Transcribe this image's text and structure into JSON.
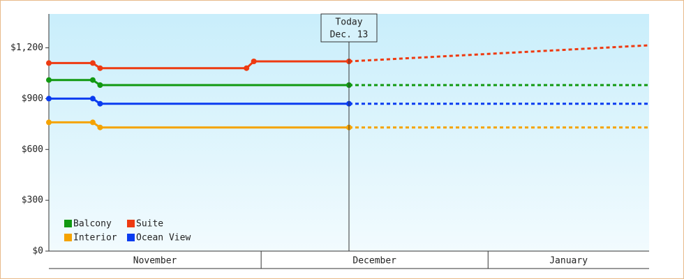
{
  "chart_data": {
    "type": "line",
    "xlim": [
      "Nov 2",
      "Jan 23"
    ],
    "ylim": [
      0,
      1400
    ],
    "yticks": [
      {
        "value": 0,
        "label": "$0"
      },
      {
        "value": 300,
        "label": "$300"
      },
      {
        "value": 600,
        "label": "$600"
      },
      {
        "value": 900,
        "label": "$900"
      },
      {
        "value": 1200,
        "label": "$1,200"
      }
    ],
    "month_bands": [
      {
        "label": "November",
        "start": "Nov 2",
        "end": "Dec 1"
      },
      {
        "label": "December",
        "start": "Dec 1",
        "end": "Jan 1"
      },
      {
        "label": "January",
        "start": "Jan 1",
        "end": "Jan 23"
      }
    ],
    "annotation": {
      "x": "Dec 13",
      "lines": [
        "Today",
        "Dec. 13"
      ]
    },
    "legend": "bottom-left",
    "series": [
      {
        "name": "Balcony",
        "color": "#119911",
        "x": [
          "Nov 2",
          "Nov 8",
          "Nov 9",
          "Dec 13"
        ],
        "values": [
          1010,
          1010,
          980,
          980
        ],
        "forecast_x": [
          "Dec 13",
          "Jan 23"
        ],
        "forecast_values": [
          980,
          980
        ]
      },
      {
        "name": "Suite",
        "color": "#ee3a11",
        "x": [
          "Nov 2",
          "Nov 8",
          "Nov 9",
          "Nov 29",
          "Nov 30",
          "Dec 13"
        ],
        "values": [
          1110,
          1110,
          1080,
          1080,
          1120,
          1120
        ],
        "forecast_x": [
          "Dec 13",
          "Jan 23"
        ],
        "forecast_values": [
          1120,
          1215
        ]
      },
      {
        "name": "Interior",
        "color": "#f5a300",
        "x": [
          "Nov 2",
          "Nov 8",
          "Nov 9",
          "Dec 13"
        ],
        "values": [
          760,
          760,
          730,
          730
        ],
        "forecast_x": [
          "Dec 13",
          "Jan 23"
        ],
        "forecast_values": [
          730,
          730
        ]
      },
      {
        "name": "Ocean View",
        "color": "#0a3cf0",
        "x": [
          "Nov 2",
          "Nov 8",
          "Nov 9",
          "Dec 13"
        ],
        "values": [
          900,
          900,
          870,
          870
        ],
        "forecast_x": [
          "Dec 13",
          "Jan 23"
        ],
        "forecast_values": [
          870,
          870
        ]
      }
    ]
  }
}
